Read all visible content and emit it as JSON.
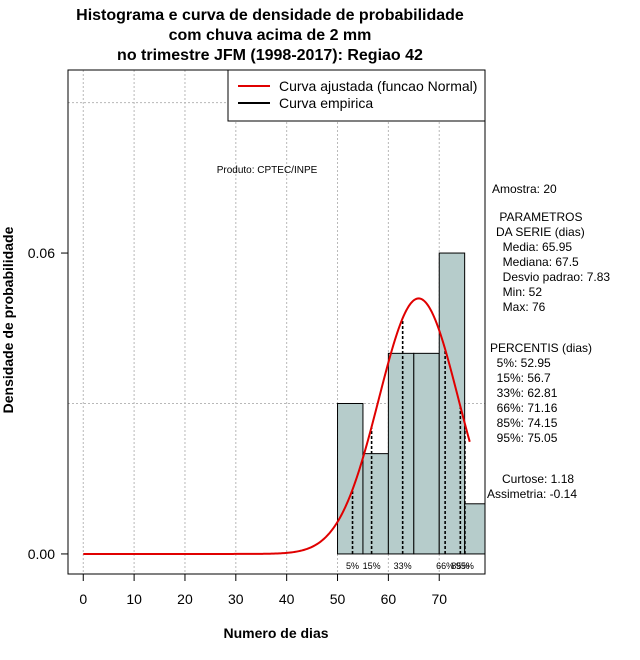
{
  "chart_data": {
    "type": "bar",
    "title_lines": [
      "Histograma e curva de densidade de probabilidade",
      "com chuva acima de 2 mm",
      "no trimestre JFM (1998-2017): Regiao 42"
    ],
    "xlabel": "Numero de dias",
    "ylabel": "Densidade de probabilidade",
    "xlim": [
      -3,
      79
    ],
    "ylim": [
      -0.004,
      0.0965
    ],
    "x_ticks": [
      "0",
      "10",
      "20",
      "30",
      "40",
      "50",
      "60",
      "70"
    ],
    "x_tick_values": [
      0,
      10,
      20,
      30,
      40,
      50,
      60,
      70
    ],
    "y_ticks": [
      "0.00",
      "0.06"
    ],
    "y_tick_values": [
      0.0,
      0.06
    ],
    "grid": true,
    "legend_position": "top-right",
    "legend": [
      {
        "label": "Curva ajustada (funcao Normal)",
        "color": "#e00000"
      },
      {
        "label": "Curva empirica",
        "color": "#000000"
      }
    ],
    "histogram": {
      "bins": [
        {
          "start": 50,
          "end": 55,
          "density": 0.03
        },
        {
          "start": 55,
          "end": 60,
          "density": 0.02
        },
        {
          "start": 60,
          "end": 65,
          "density": 0.04
        },
        {
          "start": 65,
          "end": 70,
          "density": 0.04
        },
        {
          "start": 70,
          "end": 75,
          "density": 0.06
        },
        {
          "start": 75,
          "end": 80,
          "density": 0.01
        }
      ],
      "fill": "#b6cccb"
    },
    "normal_curve": {
      "mean": 65.95,
      "sd": 7.83,
      "x_range": [
        0,
        76
      ],
      "color": "#e00000"
    },
    "percentiles": [
      {
        "label": "5%",
        "value": 52.95
      },
      {
        "label": "15%",
        "value": 56.7
      },
      {
        "label": "33%",
        "value": 62.81
      },
      {
        "label": "66%",
        "value": 71.16
      },
      {
        "label": "85%",
        "value": 74.15
      },
      {
        "label": "95%",
        "value": 75.05
      }
    ],
    "product_label": "Produto: CPTEC/INPE"
  },
  "stats": {
    "amostra": "Amostra: 20",
    "param_lines": [
      " PARAMETROS",
      "DA SERIE (dias)",
      "  Media: 65.95",
      "  Mediana: 67.5",
      "  Desvio padrao: 7.83",
      "  Min: 52",
      "  Max: 76"
    ],
    "perc_lines": [
      "PERCENTIS (dias)",
      "  5%: 52.95",
      "  15%: 56.7",
      "  33%: 62.81",
      "  66%: 71.16",
      "  85%: 74.15",
      "  95%: 75.05"
    ],
    "curtose": "Curtose: 1.18",
    "assimetria": "Assimetria: -0.14"
  }
}
